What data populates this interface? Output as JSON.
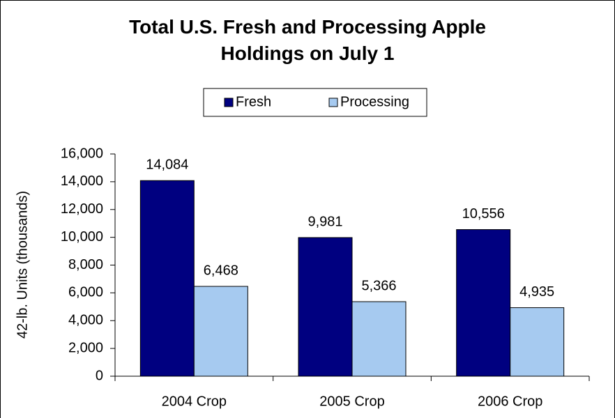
{
  "chart_data": {
    "type": "bar",
    "title": "Total U.S. Fresh and Processing Apple Holdings on July 1",
    "y_label": "42-lb. Units (thousands)",
    "categories": [
      "2004 Crop",
      "2005 Crop",
      "2006 Crop"
    ],
    "series": [
      {
        "name": "Fresh",
        "color": "#000080",
        "values": [
          14084,
          9981,
          10556
        ],
        "value_labels": [
          "14,084",
          "9,981",
          "10,556"
        ]
      },
      {
        "name": "Processing",
        "color": "#a6caf0",
        "values": [
          6468,
          5366,
          4935
        ],
        "value_labels": [
          "6,468",
          "5,366",
          "4,935"
        ]
      }
    ],
    "ylim": [
      0,
      16000
    ],
    "yticks": [
      0,
      {
        "value": 2000,
        "label": "2,000"
      },
      {
        "value": 4000,
        "label": "4,000"
      },
      {
        "value": 6000,
        "label": "6,000"
      },
      {
        "value": 8000,
        "label": "8,000"
      },
      {
        "value": 10000,
        "label": "10,000"
      },
      {
        "value": 12000,
        "label": "12,000"
      },
      {
        "value": 14000,
        "label": "14,000"
      },
      {
        "value": 16000,
        "label": "16,000"
      }
    ],
    "legend": "top",
    "grid": false
  }
}
